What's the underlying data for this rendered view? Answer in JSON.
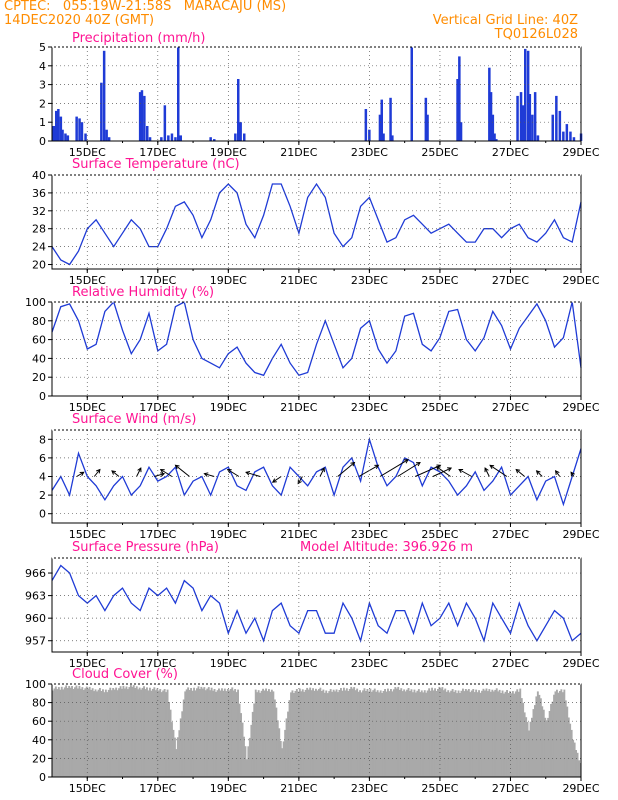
{
  "header": {
    "line1_left": "CPTEC:   055:19W-21:58S   MARACAJU (MS)",
    "line2_left": "14DEC2020 40Z (GMT)",
    "line2_right": "Vertical Grid Line: 40Z",
    "line3_right": "TQ0126L028",
    "color": "#ff8c00"
  },
  "x_axis": {
    "tick_labels": [
      "15DEC",
      "17DEC",
      "19DEC",
      "21DEC",
      "23DEC",
      "25DEC",
      "27DEC",
      "29DEC"
    ],
    "tick_days": [
      1,
      3,
      5,
      7,
      9,
      11,
      13,
      15
    ],
    "range_days": [
      0,
      15
    ]
  },
  "colors": {
    "line": "#1f3bd6",
    "bar": "#1f3bd6",
    "cloud": "#a9a9a9",
    "title": "#ff1493"
  },
  "chart_data": [
    {
      "type": "bar",
      "title": "Precipitation (mm/h)",
      "ylim": [
        0,
        5
      ],
      "yticks": [
        0,
        1,
        2,
        3,
        4,
        5
      ],
      "x_days": [
        0.05,
        0.12,
        0.18,
        0.25,
        0.3,
        0.38,
        0.45,
        0.7,
        0.78,
        0.85,
        0.95,
        1.4,
        1.48,
        1.55,
        1.62,
        2.5,
        2.55,
        2.62,
        2.7,
        2.78,
        3.1,
        3.2,
        3.3,
        3.4,
        3.5,
        3.58,
        3.65,
        4.5,
        4.6,
        5.2,
        5.28,
        5.35,
        5.45,
        8.9,
        9.0,
        9.3,
        9.35,
        9.4,
        9.6,
        9.65,
        10.2,
        10.6,
        10.65,
        11.5,
        11.55,
        11.6,
        12.4,
        12.45,
        12.5,
        12.55,
        12.6,
        13.2,
        13.3,
        13.35,
        13.42,
        13.5,
        13.55,
        13.62,
        13.7,
        13.78,
        14.2,
        14.3,
        14.4,
        14.5,
        14.6,
        14.7,
        14.8,
        15.0
      ],
      "values": [
        0.8,
        1.6,
        1.7,
        1.3,
        0.6,
        0.4,
        0.3,
        1.3,
        1.2,
        1.0,
        0.4,
        3.1,
        4.8,
        0.6,
        0.2,
        2.6,
        2.7,
        2.4,
        0.8,
        0.2,
        0.2,
        1.9,
        0.3,
        0.4,
        0.2,
        5.0,
        0.3,
        0.2,
        0.1,
        0.4,
        3.3,
        1.0,
        0.4,
        1.7,
        0.6,
        1.4,
        2.2,
        0.4,
        2.3,
        0.3,
        5.0,
        2.3,
        1.4,
        3.3,
        4.5,
        1.0,
        3.9,
        2.6,
        1.4,
        0.4,
        0.1,
        2.4,
        2.6,
        1.9,
        4.9,
        4.8,
        2.5,
        1.4,
        2.6,
        0.3,
        1.4,
        2.4,
        1.6,
        0.5,
        0.9,
        0.5,
        0.2,
        0.4
      ]
    },
    {
      "type": "line",
      "title": "Surface Temperature (nC)",
      "ylim": [
        19,
        40
      ],
      "yticks": [
        20,
        24,
        28,
        32,
        36,
        40
      ],
      "x": [
        0,
        0.25,
        0.5,
        0.75,
        1,
        1.25,
        1.5,
        1.75,
        2,
        2.25,
        2.5,
        2.75,
        3,
        3.25,
        3.5,
        3.75,
        4,
        4.25,
        4.5,
        4.75,
        5,
        5.25,
        5.5,
        5.75,
        6,
        6.25,
        6.5,
        6.75,
        7,
        7.25,
        7.5,
        7.75,
        8,
        8.25,
        8.5,
        8.75,
        9,
        9.25,
        9.5,
        9.75,
        10,
        10.25,
        10.5,
        10.75,
        11,
        11.25,
        11.5,
        11.75,
        12,
        12.25,
        12.5,
        12.75,
        13,
        13.25,
        13.5,
        13.75,
        14,
        14.25,
        14.5,
        14.75,
        15
      ],
      "values": [
        24,
        21,
        20,
        23,
        28,
        30,
        27,
        24,
        27,
        30,
        28,
        24,
        24,
        28,
        33,
        34,
        31,
        26,
        30,
        36,
        38,
        36,
        29,
        26,
        31,
        38,
        38,
        33,
        27,
        35,
        38,
        35,
        27,
        24,
        26,
        33,
        35,
        30,
        25,
        26,
        30,
        31,
        29,
        27,
        28,
        29,
        27,
        25,
        25,
        28,
        28,
        26,
        28,
        29,
        26,
        25,
        27,
        30,
        26,
        25,
        34
      ]
    },
    {
      "type": "line",
      "title": "Relative Humidity (%)",
      "ylim": [
        0,
        100
      ],
      "yticks": [
        0,
        20,
        40,
        60,
        80,
        100
      ],
      "x": [
        0,
        0.25,
        0.5,
        0.75,
        1,
        1.25,
        1.5,
        1.75,
        2,
        2.25,
        2.5,
        2.75,
        3,
        3.25,
        3.5,
        3.75,
        4,
        4.25,
        4.5,
        4.75,
        5,
        5.25,
        5.5,
        5.75,
        6,
        6.25,
        6.5,
        6.75,
        7,
        7.25,
        7.5,
        7.75,
        8,
        8.25,
        8.5,
        8.75,
        9,
        9.25,
        9.5,
        9.75,
        10,
        10.25,
        10.5,
        10.75,
        11,
        11.25,
        11.5,
        11.75,
        12,
        12.25,
        12.5,
        12.75,
        13,
        13.25,
        13.5,
        13.75,
        14,
        14.25,
        14.5,
        14.75,
        15
      ],
      "values": [
        68,
        95,
        98,
        80,
        50,
        55,
        90,
        100,
        70,
        45,
        60,
        88,
        48,
        55,
        95,
        100,
        60,
        40,
        35,
        30,
        45,
        52,
        35,
        25,
        22,
        40,
        55,
        35,
        22,
        25,
        55,
        80,
        55,
        30,
        40,
        72,
        80,
        50,
        35,
        48,
        85,
        88,
        55,
        48,
        62,
        90,
        92,
        60,
        48,
        62,
        90,
        75,
        50,
        72,
        85,
        98,
        80,
        52,
        62,
        100,
        30
      ]
    },
    {
      "type": "line",
      "title": "Surface Wind (m/s)",
      "ylim": [
        -1,
        9
      ],
      "yticks": [
        0,
        2,
        4,
        6,
        8
      ],
      "x": [
        0,
        0.25,
        0.5,
        0.75,
        1,
        1.25,
        1.5,
        1.75,
        2,
        2.25,
        2.5,
        2.75,
        3,
        3.25,
        3.5,
        3.75,
        4,
        4.25,
        4.5,
        4.75,
        5,
        5.25,
        5.5,
        5.75,
        6,
        6.25,
        6.5,
        6.75,
        7,
        7.25,
        7.5,
        7.75,
        8,
        8.25,
        8.5,
        8.75,
        9,
        9.25,
        9.5,
        9.75,
        10,
        10.25,
        10.5,
        10.75,
        11,
        11.25,
        11.5,
        11.75,
        12,
        12.25,
        12.5,
        12.75,
        13,
        13.25,
        13.5,
        13.75,
        14,
        14.25,
        14.5,
        14.75,
        15
      ],
      "values": [
        2.5,
        4,
        2,
        6.5,
        4,
        3,
        1.5,
        3,
        4,
        2,
        3,
        5,
        3.5,
        4,
        5,
        2,
        3.5,
        4,
        2,
        4.5,
        5,
        3,
        2.5,
        4.5,
        5,
        3,
        2,
        5,
        4,
        3,
        4.5,
        5,
        2,
        5,
        6,
        3.5,
        8,
        5,
        3,
        4,
        6,
        5.5,
        3,
        5,
        4.5,
        3.5,
        2,
        3,
        4.5,
        2.5,
        3.5,
        5,
        2,
        3,
        4,
        1.5,
        3.5,
        4,
        1,
        4,
        7
      ],
      "vectors": {
        "x_days": [
          0.7,
          1.2,
          1.9,
          2.4,
          2.9,
          3.4,
          3.9,
          4.6,
          5.3,
          5.9,
          6.5,
          7.1,
          7.6,
          8.1,
          8.7,
          9.3,
          9.8,
          10.3,
          10.8,
          11.3,
          11.9,
          12.4,
          12.9,
          13.4,
          13.9,
          14.4,
          14.8
        ],
        "u": [
          0.5,
          0.4,
          -0.5,
          0.3,
          0.7,
          -0.8,
          -1.0,
          -0.7,
          -0.8,
          -1.0,
          -0.6,
          -0.3,
          0.3,
          1.2,
          1.4,
          2.0,
          1.6,
          1.8,
          1.3,
          -1.0,
          -0.9,
          -0.3,
          -1.2,
          -0.6,
          -0.4,
          -0.3,
          -0.2
        ],
        "v": [
          0.3,
          0.5,
          0.4,
          0.6,
          0.2,
          0.5,
          0.8,
          0.2,
          0.5,
          0.3,
          -0.4,
          -0.5,
          0.6,
          1.0,
          0.8,
          1.2,
          1.0,
          0.8,
          0.6,
          0.7,
          0.5,
          0.6,
          0.8,
          0.5,
          0.4,
          0.4,
          0.3
        ]
      }
    },
    {
      "type": "line",
      "title": "Surface Pressure (hPa)",
      "subtitle": "Model Altitude: 396.926 m",
      "ylim": [
        955.5,
        968
      ],
      "yticks": [
        957,
        960,
        963,
        966
      ],
      "x": [
        0,
        0.25,
        0.5,
        0.75,
        1,
        1.25,
        1.5,
        1.75,
        2,
        2.25,
        2.5,
        2.75,
        3,
        3.25,
        3.5,
        3.75,
        4,
        4.25,
        4.5,
        4.75,
        5,
        5.25,
        5.5,
        5.75,
        6,
        6.25,
        6.5,
        6.75,
        7,
        7.25,
        7.5,
        7.75,
        8,
        8.25,
        8.5,
        8.75,
        9,
        9.25,
        9.5,
        9.75,
        10,
        10.25,
        10.5,
        10.75,
        11,
        11.25,
        11.5,
        11.75,
        12,
        12.25,
        12.5,
        12.75,
        13,
        13.25,
        13.5,
        13.75,
        14,
        14.25,
        14.5,
        14.75,
        15
      ],
      "values": [
        965,
        967,
        966,
        963,
        962,
        963,
        961,
        963,
        964,
        962,
        961,
        964,
        963,
        964,
        962,
        965,
        964,
        961,
        963,
        962,
        958,
        961,
        958,
        960,
        957,
        961,
        962,
        959,
        958,
        961,
        961,
        958,
        958,
        962,
        960,
        957,
        962,
        959,
        958,
        961,
        961,
        958,
        962,
        959,
        960,
        962,
        959,
        962,
        960,
        957,
        962,
        960,
        958,
        962,
        959,
        957,
        959,
        961,
        960,
        957,
        958
      ]
    },
    {
      "type": "bar",
      "title": "Cloud Cover (%)",
      "ylim": [
        0,
        100
      ],
      "yticks": [
        0,
        20,
        40,
        60,
        80,
        100
      ],
      "x": [
        0,
        0.25,
        0.5,
        0.75,
        1,
        1.25,
        1.5,
        1.75,
        2,
        2.25,
        2.5,
        2.75,
        3,
        3.25,
        3.5,
        3.75,
        4,
        4.25,
        4.5,
        4.75,
        5,
        5.25,
        5.5,
        5.75,
        6,
        6.25,
        6.5,
        6.75,
        7,
        7.25,
        7.5,
        7.75,
        8,
        8.25,
        8.5,
        8.75,
        9,
        9.25,
        9.5,
        9.75,
        10,
        10.25,
        10.5,
        10.75,
        11,
        11.25,
        11.5,
        11.75,
        12,
        12.25,
        12.5,
        12.75,
        13,
        13.25,
        13.5,
        13.75,
        14,
        14.25,
        14.5,
        14.75,
        15
      ],
      "values": [
        95,
        96,
        97,
        96,
        95,
        94,
        93,
        95,
        96,
        97,
        96,
        95,
        94,
        92,
        30,
        94,
        95,
        96,
        94,
        93,
        95,
        93,
        20,
        92,
        93,
        94,
        30,
        92,
        93,
        94,
        95,
        92,
        93,
        94,
        95,
        93,
        94,
        92,
        93,
        95,
        94,
        93,
        92,
        94,
        95,
        93,
        92,
        94,
        92,
        93,
        94,
        92,
        91,
        93,
        50,
        94,
        60,
        93,
        92,
        40,
        10
      ]
    }
  ]
}
